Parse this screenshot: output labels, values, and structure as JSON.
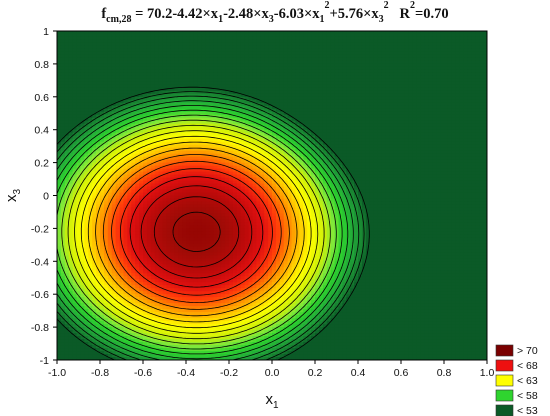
{
  "chart_data": {
    "type": "contour",
    "title": {
      "lhs_main": "f",
      "lhs_sub": "cm,28",
      "rhs_parts": [
        {
          "t": " = 70.2-4.42×x",
          "s": "n"
        },
        {
          "t": "1",
          "s": "sub"
        },
        {
          "t": "-2.48×x",
          "s": "n"
        },
        {
          "t": "3",
          "s": "sub"
        },
        {
          "t": "-6.03×x",
          "s": "n"
        },
        {
          "t": "1",
          "s": "sub"
        },
        {
          "t": "2",
          "s": "sup"
        },
        {
          "t": "+5.76×x",
          "s": "n"
        },
        {
          "t": "3",
          "s": "sub"
        },
        {
          "t": "2",
          "s": "sup"
        }
      ],
      "r2_parts": [
        {
          "t": "R",
          "s": "n"
        },
        {
          "t": "2",
          "s": "sup"
        },
        {
          "t": "=0.70",
          "s": "n"
        }
      ]
    },
    "xlabel": {
      "main": "x",
      "sub": "1"
    },
    "ylabel": {
      "main": "x",
      "sub": "3"
    },
    "xlim": [
      -1,
      1
    ],
    "ylim": [
      -1,
      1
    ],
    "x_ticks": [
      "-1.0",
      "-0.8",
      "-0.6",
      "-0.4",
      "-0.2",
      "0.0",
      "0.2",
      "0.4",
      "0.6",
      "0.8",
      "1.0"
    ],
    "y_ticks": [
      "1",
      "0.8",
      "0.6",
      "0.4",
      "0.2",
      "0",
      "-0.2",
      "-0.4",
      "-0.6",
      "-0.8",
      "-1"
    ],
    "x_tick_values": [
      -1,
      -0.8,
      -0.6,
      -0.4,
      -0.2,
      0,
      0.2,
      0.4,
      0.6,
      0.8,
      1
    ],
    "y_tick_values": [
      1,
      0.8,
      0.6,
      0.4,
      0.2,
      0,
      -0.2,
      -0.4,
      -0.6,
      -0.8,
      -1
    ],
    "center": {
      "x1": -0.35,
      "x3": -0.22,
      "value": 71.5
    },
    "contour_levels": [
      71,
      70,
      69,
      68,
      67,
      66,
      65,
      64,
      63,
      62,
      61,
      60,
      59,
      58,
      57,
      56,
      55,
      54,
      53,
      52
    ],
    "shape": {
      "x_scale": 0.46,
      "x3_scale": 0.5,
      "corner_a_scale": 0.86,
      "corner_a_boost": 14,
      "corner_b_scale": 0.55,
      "corner_b_boost": 5
    },
    "legend": {
      "placement": "bottom-right",
      "items": [
        {
          "label": "> 70",
          "color": "#7a0000"
        },
        {
          "label": "< 68",
          "color": "#ee1010"
        },
        {
          "label": "< 63",
          "color": "#ffff00"
        },
        {
          "label": "< 58",
          "color": "#2fd42f"
        },
        {
          "label": "< 53",
          "color": "#0b5a27"
        }
      ]
    },
    "color_stops": [
      {
        "v": 52,
        "c": "#0b5a27"
      },
      {
        "v": 53,
        "c": "#167a30"
      },
      {
        "v": 55,
        "c": "#22a93a"
      },
      {
        "v": 57,
        "c": "#2ed32e"
      },
      {
        "v": 58.5,
        "c": "#80e83a"
      },
      {
        "v": 60,
        "c": "#cdf00a"
      },
      {
        "v": 62,
        "c": "#ffff00"
      },
      {
        "v": 63.5,
        "c": "#ffcc00"
      },
      {
        "v": 65,
        "c": "#ff8a00"
      },
      {
        "v": 66.5,
        "c": "#ff3a0a"
      },
      {
        "v": 68,
        "c": "#e01010"
      },
      {
        "v": 69.5,
        "c": "#bd0a0a"
      },
      {
        "v": 71,
        "c": "#9e0b06"
      },
      {
        "v": 72,
        "c": "#900000"
      }
    ]
  }
}
